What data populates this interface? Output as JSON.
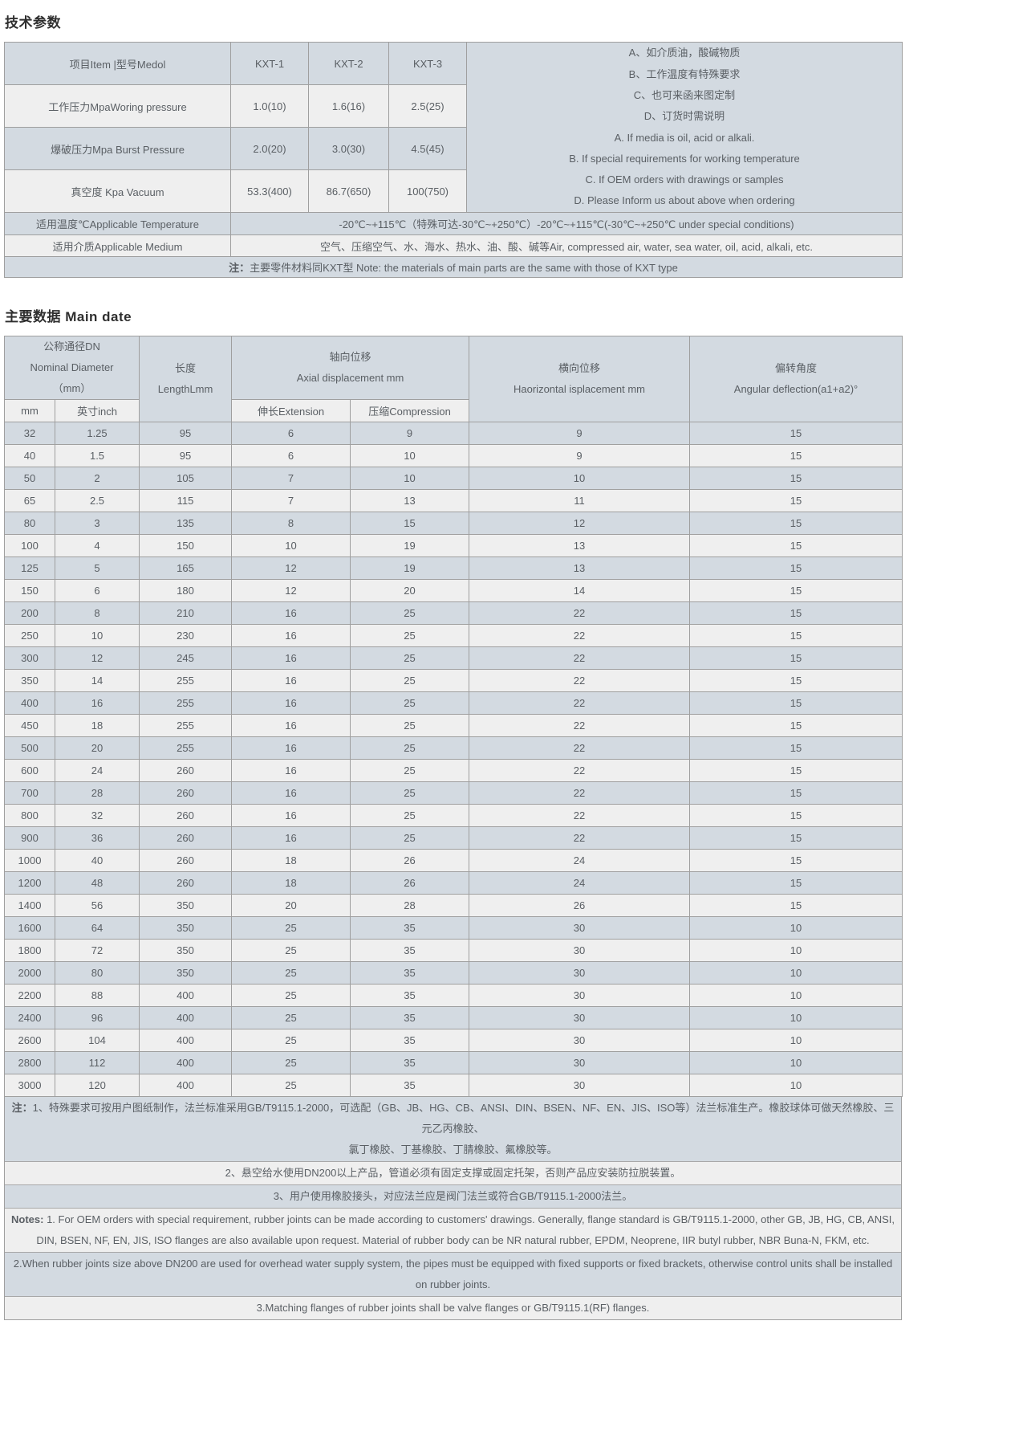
{
  "colors": {
    "stripe_blue": "#d3dae1",
    "stripe_light": "#efefef",
    "border_gray": "#9f9f9f",
    "text_gray": "#5a5f64",
    "heading_dark": "#2f2f2f"
  },
  "section1": {
    "title": "技术参数",
    "table": {
      "header": {
        "item": "项目Item |型号Medol",
        "models": [
          "KXT-1",
          "KXT-2",
          "KXT-3"
        ]
      },
      "rows": [
        {
          "label": "工作压力MpaWoring pressure",
          "values": [
            "1.0(10)",
            "1.6(16)",
            "2.5(25)"
          ]
        },
        {
          "label": "爆破压力Mpa Burst Pressure",
          "values": [
            "2.0(20)",
            "3.0(30)",
            "4.5(45)"
          ]
        },
        {
          "label": "真空度 Kpa Vacuum",
          "values": [
            "53.3(400)",
            "86.7(650)",
            "100(750)"
          ]
        }
      ],
      "side_notes": [
        "A、如介质油，酸碱物质",
        "B、工作温度有特殊要求",
        "C、也可来函来图定制",
        "D、订货时需说明",
        "A. If media is oil, acid or alkali.",
        "B. If special requirements for working temperature",
        "C. If OEM orders with drawings or samples",
        "D. Please Inform us about above when ordering"
      ],
      "temperature": {
        "label": "适用温度℃Applicable Temperature",
        "value": "-20℃~+115℃（特殊可达-30℃~+250℃）-20℃~+115℃(-30℃~+250℃ under special conditions)"
      },
      "medium": {
        "label": "适用介质Applicable Medium",
        "value": "空气、压缩空气、水、海水、热水、油、酸、碱等Air, compressed air, water, sea water, oil, acid, alkali, etc."
      },
      "note": {
        "bold": "注：",
        "text": "主要零件材料同KXT型 Note: the materials of main parts are the same with those of KXT type"
      }
    }
  },
  "section2": {
    "title": "主要数据 Main date",
    "table": {
      "header": {
        "dn": [
          "公称通径DN",
          "Nominal Diameter",
          "（mm）"
        ],
        "dn_sub": [
          "mm",
          "英寸inch"
        ],
        "length": [
          "长度",
          "LengthLmm"
        ],
        "axial": [
          "轴向位移",
          "Axial displacement mm"
        ],
        "axial_sub": [
          "伸长Extension",
          "压缩Compression"
        ],
        "horizontal": [
          "横向位移",
          "Haorizontal isplacement mm"
        ],
        "angular": [
          "偏转角度",
          "Angular deflection(a1+a2)°"
        ]
      },
      "rows": [
        [
          "32",
          "1.25",
          "95",
          "6",
          "9",
          "9",
          "15"
        ],
        [
          "40",
          "1.5",
          "95",
          "6",
          "10",
          "9",
          "15"
        ],
        [
          "50",
          "2",
          "105",
          "7",
          "10",
          "10",
          "15"
        ],
        [
          "65",
          "2.5",
          "115",
          "7",
          "13",
          "11",
          "15"
        ],
        [
          "80",
          "3",
          "135",
          "8",
          "15",
          "12",
          "15"
        ],
        [
          "100",
          "4",
          "150",
          "10",
          "19",
          "13",
          "15"
        ],
        [
          "125",
          "5",
          "165",
          "12",
          "19",
          "13",
          "15"
        ],
        [
          "150",
          "6",
          "180",
          "12",
          "20",
          "14",
          "15"
        ],
        [
          "200",
          "8",
          "210",
          "16",
          "25",
          "22",
          "15"
        ],
        [
          "250",
          "10",
          "230",
          "16",
          "25",
          "22",
          "15"
        ],
        [
          "300",
          "12",
          "245",
          "16",
          "25",
          "22",
          "15"
        ],
        [
          "350",
          "14",
          "255",
          "16",
          "25",
          "22",
          "15"
        ],
        [
          "400",
          "16",
          "255",
          "16",
          "25",
          "22",
          "15"
        ],
        [
          "450",
          "18",
          "255",
          "16",
          "25",
          "22",
          "15"
        ],
        [
          "500",
          "20",
          "255",
          "16",
          "25",
          "22",
          "15"
        ],
        [
          "600",
          "24",
          "260",
          "16",
          "25",
          "22",
          "15"
        ],
        [
          "700",
          "28",
          "260",
          "16",
          "25",
          "22",
          "15"
        ],
        [
          "800",
          "32",
          "260",
          "16",
          "25",
          "22",
          "15"
        ],
        [
          "900",
          "36",
          "260",
          "16",
          "25",
          "22",
          "15"
        ],
        [
          "1000",
          "40",
          "260",
          "18",
          "26",
          "24",
          "15"
        ],
        [
          "1200",
          "48",
          "260",
          "18",
          "26",
          "24",
          "15"
        ],
        [
          "1400",
          "56",
          "350",
          "20",
          "28",
          "26",
          "15"
        ],
        [
          "1600",
          "64",
          "350",
          "25",
          "35",
          "30",
          "10"
        ],
        [
          "1800",
          "72",
          "350",
          "25",
          "35",
          "30",
          "10"
        ],
        [
          "2000",
          "80",
          "350",
          "25",
          "35",
          "30",
          "10"
        ],
        [
          "2200",
          "88",
          "400",
          "25",
          "35",
          "30",
          "10"
        ],
        [
          "2400",
          "96",
          "400",
          "25",
          "35",
          "30",
          "10"
        ],
        [
          "2600",
          "104",
          "400",
          "25",
          "35",
          "30",
          "10"
        ],
        [
          "2800",
          "112",
          "400",
          "25",
          "35",
          "30",
          "10"
        ],
        [
          "3000",
          "120",
          "400",
          "25",
          "35",
          "30",
          "10"
        ]
      ]
    },
    "notes": [
      {
        "shade": "blue",
        "lines": [
          {
            "bold": "注：",
            "text": "1、特殊要求可按用户图纸制作，法兰标准采用GB/T9115.1-2000，可选配（GB、JB、HG、CB、ANSI、DIN、BSEN、NF、EN、JIS、ISO等）法兰标准生产。橡胶球体可做天然橡胶、三元乙丙橡胶、"
          },
          {
            "text": "氯丁橡胶、丁基橡胶、丁腈橡胶、氟橡胶等。"
          }
        ]
      },
      {
        "shade": "light",
        "lines": [
          {
            "text": "2、悬空给水使用DN200以上产品，管道必须有固定支撑或固定托架，否则产品应安装防拉脱装置。"
          }
        ]
      },
      {
        "shade": "blue",
        "lines": [
          {
            "text": "3、用户使用橡胶接头，对应法兰应是阀门法兰或符合GB/T9115.1-2000法兰。"
          }
        ]
      },
      {
        "shade": "light",
        "lines": [
          {
            "bold": "Notes:",
            "text": " 1. For OEM orders with special requirement, rubber joints can be made according to customers' drawings. Generally, flange standard is GB/T9115.1-2000, other GB, JB, HG, CB, ANSI,"
          },
          {
            "text": "DIN, BSEN, NF, EN, JIS, ISO flanges are also available upon request. Material of rubber body can be NR natural rubber, EPDM, Neoprene, IIR butyl rubber, NBR Buna-N, FKM, etc."
          }
        ]
      },
      {
        "shade": "blue",
        "lines": [
          {
            "text": "2.When rubber joints size above DN200 are used for overhead water supply system, the pipes must be equipped with fixed supports or fixed brackets, otherwise control units shall be installed"
          },
          {
            "text": "on rubber joints."
          }
        ]
      },
      {
        "shade": "light",
        "lines": [
          {
            "text": "3.Matching flanges of rubber joints shall be valve flanges or GB/T9115.1(RF) flanges."
          }
        ]
      }
    ]
  }
}
